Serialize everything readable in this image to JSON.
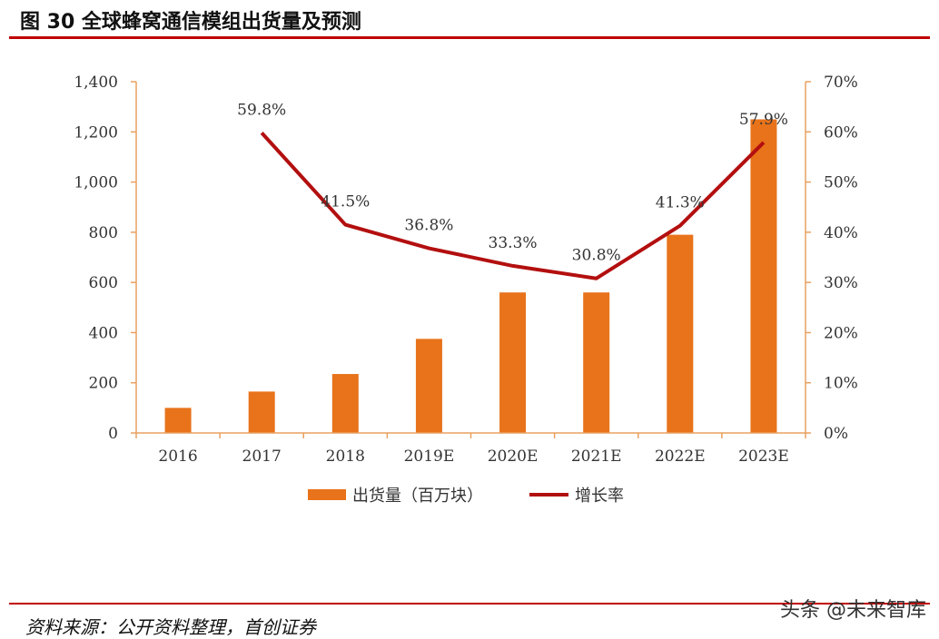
{
  "figure": {
    "title": "图  30 全球蜂窝通信模组出货量及预测",
    "source": "资料来源：公开资料整理，首创证券",
    "watermark": "头条 @未来智库"
  },
  "colors": {
    "bar": "#e8731b",
    "line": "#b30f0f",
    "axis": "#e8a060",
    "rule": "#c00000"
  },
  "chart_data": {
    "type": "bar",
    "categories": [
      "2016",
      "2017",
      "2018",
      "2019E",
      "2020E",
      "2021E",
      "2022E",
      "2023E"
    ],
    "series": [
      {
        "name": "出货量（百万块）",
        "type": "bar",
        "axis": "left",
        "values": [
          100,
          165,
          235,
          375,
          560,
          560,
          790,
          1250
        ]
      },
      {
        "name": "增长率",
        "type": "line",
        "axis": "right",
        "values": [
          null,
          59.8,
          41.5,
          36.8,
          33.3,
          30.8,
          41.3,
          57.9
        ],
        "labels": [
          "",
          "59.8%",
          "41.5%",
          "36.8%",
          "33.3%",
          "30.8%",
          "41.3%",
          "57.9%"
        ]
      }
    ],
    "y_left": {
      "min": 0,
      "max": 1400,
      "step": 200,
      "tick_labels": [
        "0",
        "200",
        "400",
        "600",
        "800",
        "1,000",
        "1,200",
        "1,400"
      ]
    },
    "y_right": {
      "min": 0,
      "max": 70,
      "step": 10,
      "tick_labels": [
        "0%",
        "10%",
        "20%",
        "30%",
        "40%",
        "50%",
        "60%",
        "70%"
      ]
    },
    "legend_position": "bottom-center",
    "grid": false
  }
}
